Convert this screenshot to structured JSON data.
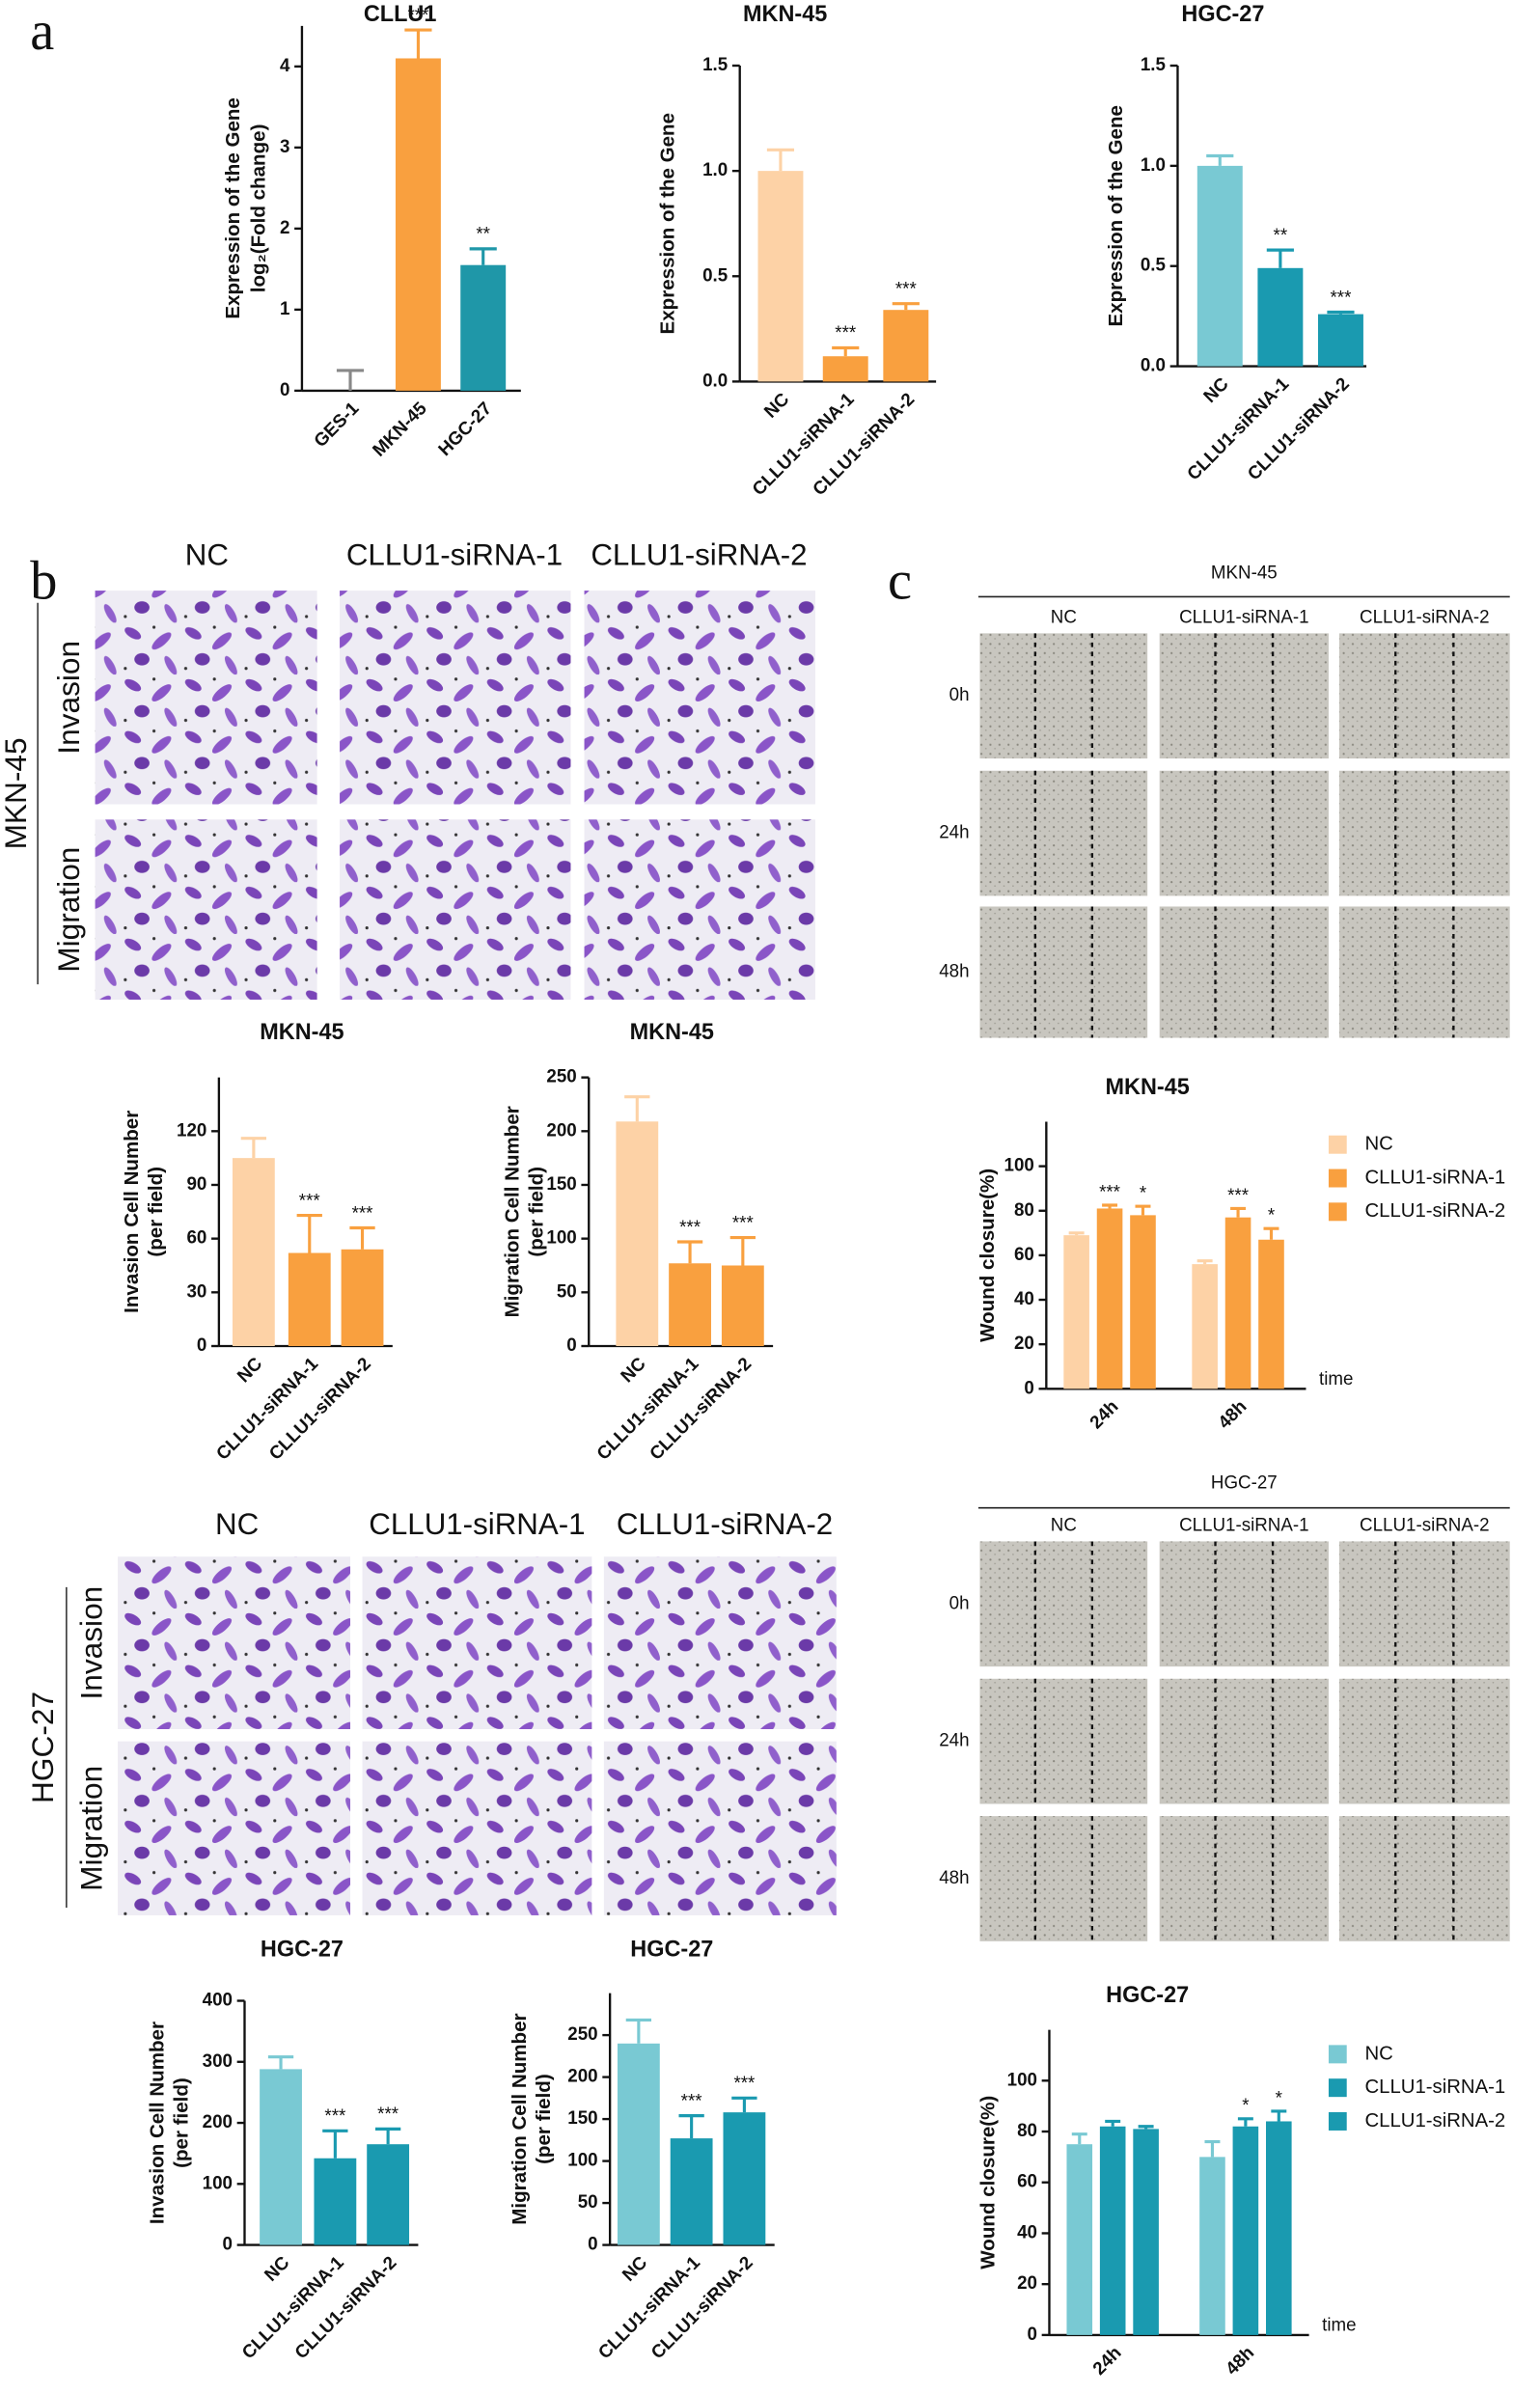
{
  "figure": {
    "panel_labels": [
      "a",
      "b",
      "c"
    ],
    "transwell": [
      {
        "cell_line": "MKN-45",
        "columns": [
          "NC",
          "CLLU1-siRNA-1",
          "CLLU1-siRNA-2"
        ],
        "rows": [
          "Invasion",
          "Migration"
        ]
      },
      {
        "cell_line": "HGC-27",
        "columns": [
          "NC",
          "CLLU1-siRNA-1",
          "CLLU1-siRNA-2"
        ],
        "rows": [
          "Invasion",
          "Migration"
        ]
      }
    ],
    "wound": [
      {
        "cell_line": "MKN-45",
        "columns": [
          "NC",
          "CLLU1-siRNA-1",
          "CLLU1-siRNA-2"
        ],
        "rows": [
          "0h",
          "24h",
          "48h"
        ]
      },
      {
        "cell_line": "HGC-27",
        "columns": [
          "NC",
          "CLLU1-siRNA-1",
          "CLLU1-siRNA-2"
        ],
        "rows": [
          "0h",
          "24h",
          "48h"
        ]
      }
    ]
  },
  "chart_data": [
    {
      "type": "bar",
      "title": "CLLU1",
      "ylabel": [
        "Expression of the Gene",
        "log₂(Fold change)"
      ],
      "categories": [
        "GES-1",
        "MKN-45",
        "HGC-27"
      ],
      "values": [
        0,
        4.1,
        1.55
      ],
      "errors": [
        0.25,
        0.35,
        0.2
      ],
      "annotations": [
        null,
        "***",
        "**"
      ],
      "colors": [
        "#888888",
        "#f9a03f",
        "#1f97a8"
      ],
      "ylim": [
        0,
        4.5
      ],
      "yticks": [
        0,
        1,
        2,
        3,
        4
      ]
    },
    {
      "type": "bar",
      "title": "MKN-45",
      "ylabel": [
        "Expression of the Gene"
      ],
      "categories": [
        "NC",
        "CLLU1-siRNA-1",
        "CLLU1-siRNA-2"
      ],
      "values": [
        1.0,
        0.12,
        0.34
      ],
      "errors": [
        0.1,
        0.04,
        0.03
      ],
      "annotations": [
        null,
        "***",
        "***"
      ],
      "colors": [
        "#fdd2a6",
        "#f9a03f",
        "#f9a03f"
      ],
      "ylim": [
        0,
        1.5
      ],
      "yticks": [
        {
          "value": 0,
          "label": "0.0"
        },
        0.5,
        {
          "value": 1,
          "label": "1.0"
        },
        1.5
      ]
    },
    {
      "type": "bar",
      "title": "HGC-27",
      "ylabel": [
        "Expression of the Gene"
      ],
      "categories": [
        "NC",
        "CLLU1-siRNA-1",
        "CLLU1-siRNA-2"
      ],
      "values": [
        1.0,
        0.49,
        0.26
      ],
      "errors": [
        0.05,
        0.09,
        0.01
      ],
      "annotations": [
        null,
        "**",
        "***"
      ],
      "colors": [
        "#79c9d3",
        "#1a9ab0",
        "#1a9ab0"
      ],
      "ylim": [
        0,
        1.5
      ],
      "yticks": [
        {
          "value": 0,
          "label": "0.0"
        },
        0.5,
        {
          "value": 1,
          "label": "1.0"
        },
        1.5
      ]
    },
    {
      "type": "bar",
      "title": "MKN-45",
      "ylabel": [
        "Invasion Cell Number",
        "(per field)"
      ],
      "categories": [
        "NC",
        "CLLU1-siRNA-1",
        "CLLU1-siRNA-2"
      ],
      "values": [
        105,
        52,
        54
      ],
      "errors": [
        11,
        21,
        12
      ],
      "annotations": [
        null,
        "***",
        "***"
      ],
      "colors": [
        "#fdd2a6",
        "#f9a03f",
        "#f9a03f"
      ],
      "ylim": [
        0,
        150
      ],
      "yticks": [
        0,
        30,
        60,
        90,
        120
      ]
    },
    {
      "type": "bar",
      "title": "MKN-45",
      "ylabel": [
        "Migration Cell Number",
        "(per field)"
      ],
      "categories": [
        "NC",
        "CLLU1-siRNA-1",
        "CLLU1-siRNA-2"
      ],
      "values": [
        209,
        77,
        75
      ],
      "errors": [
        23,
        20,
        26
      ],
      "annotations": [
        null,
        "***",
        "***"
      ],
      "colors": [
        "#fdd2a6",
        "#f9a03f",
        "#f9a03f"
      ],
      "ylim": [
        0,
        250
      ],
      "yticks": [
        0,
        50,
        100,
        150,
        200,
        250
      ]
    },
    {
      "type": "grouped_bar",
      "title": "MKN-45",
      "ylabel": [
        "Wound closure(%)"
      ],
      "xlabel": "time",
      "categories": [
        "24h",
        "48h"
      ],
      "series": [
        {
          "name": "NC",
          "color": "#fdd2a6",
          "values": [
            69,
            56
          ],
          "errors": [
            1,
            1.5
          ],
          "annotations": [
            null,
            null
          ]
        },
        {
          "name": "CLLU1-siRNA-1",
          "color": "#f9a03f",
          "values": [
            81,
            77
          ],
          "errors": [
            1.5,
            4
          ],
          "annotations": [
            "***",
            "***"
          ]
        },
        {
          "name": "CLLU1-siRNA-2",
          "color": "#f9a03f",
          "values": [
            78,
            67
          ],
          "errors": [
            4,
            5
          ],
          "annotations": [
            "*",
            "*"
          ]
        }
      ],
      "ylim": [
        0,
        120
      ],
      "yticks": [
        0,
        20,
        40,
        60,
        80,
        100
      ],
      "legend": "right"
    },
    {
      "type": "bar",
      "title": "HGC-27",
      "ylabel": [
        "Invasion Cell Number",
        "(per field)"
      ],
      "categories": [
        "NC",
        "CLLU1-siRNA-1",
        "CLLU1-siRNA-2"
      ],
      "values": [
        288,
        142,
        165
      ],
      "errors": [
        20,
        45,
        25
      ],
      "annotations": [
        null,
        "***",
        "***"
      ],
      "colors": [
        "#79c9d3",
        "#1a9ab0",
        "#1a9ab0"
      ],
      "ylim": [
        0,
        400
      ],
      "yticks": [
        0,
        100,
        200,
        300,
        400
      ]
    },
    {
      "type": "bar",
      "title": "HGC-27",
      "ylabel": [
        "Migration Cell Number",
        "(per field)"
      ],
      "categories": [
        "NC",
        "CLLU1-siRNA-1",
        "CLLU1-siRNA-2"
      ],
      "values": [
        240,
        127,
        158
      ],
      "errors": [
        28,
        27,
        17
      ],
      "annotations": [
        null,
        "***",
        "***"
      ],
      "colors": [
        "#79c9d3",
        "#1a9ab0",
        "#1a9ab0"
      ],
      "ylim": [
        0,
        300
      ],
      "yticks": [
        0,
        50,
        100,
        150,
        200,
        250
      ]
    },
    {
      "type": "grouped_bar",
      "title": "HGC-27",
      "ylabel": [
        "Wound closure(%)"
      ],
      "xlabel": "time",
      "categories": [
        "24h",
        "48h"
      ],
      "series": [
        {
          "name": "NC",
          "color": "#79c9d3",
          "values": [
            75,
            70
          ],
          "errors": [
            4,
            6
          ],
          "annotations": [
            null,
            null
          ]
        },
        {
          "name": "CLLU1-siRNA-1",
          "color": "#1a9ab0",
          "values": [
            82,
            82
          ],
          "errors": [
            2,
            3
          ],
          "annotations": [
            null,
            "*"
          ]
        },
        {
          "name": "CLLU1-siRNA-2",
          "color": "#1a9ab0",
          "values": [
            81,
            84
          ],
          "errors": [
            1,
            4
          ],
          "annotations": [
            null,
            "*"
          ]
        }
      ],
      "ylim": [
        0,
        120
      ],
      "yticks": [
        0,
        20,
        40,
        60,
        80,
        100
      ],
      "legend": "right"
    }
  ]
}
